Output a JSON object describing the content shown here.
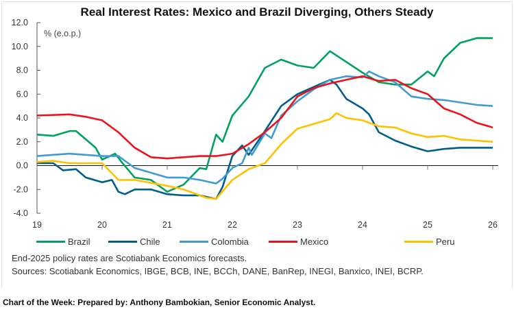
{
  "chart_data": {
    "type": "line",
    "title": "Real Interest Rates: Mexico and Brazil Diverging, Others Steady",
    "ylabel": "% (e.o.p.)",
    "xlabel": "",
    "xlim": [
      2019,
      2026
    ],
    "ylim": [
      -4.0,
      12.0
    ],
    "x_ticks": [
      "19",
      "20",
      "21",
      "22",
      "23",
      "24",
      "25",
      "26"
    ],
    "y_ticks": [
      "12.0",
      "10.0",
      "8.0",
      "6.0",
      "4.0",
      "2.0",
      "0.0",
      "-2.0",
      "-4.0"
    ],
    "grid": false,
    "legend": "bottom",
    "series": [
      {
        "name": "Brazil",
        "color": "#00A05E",
        "x": [
          2019,
          2019.25,
          2019.5,
          2019.6,
          2019.75,
          2019.9,
          2020,
          2020.2,
          2020.3,
          2020.5,
          2020.75,
          2021,
          2021.25,
          2021.5,
          2021.6,
          2021.75,
          2021.85,
          2022,
          2022.25,
          2022.5,
          2022.75,
          2023,
          2023.25,
          2023.5,
          2023.75,
          2024,
          2024.25,
          2024.5,
          2024.75,
          2025,
          2025.1,
          2025.25,
          2025.5,
          2025.75,
          2026
        ],
        "y": [
          2.6,
          2.5,
          2.9,
          2.9,
          2.2,
          1.5,
          0.5,
          1.0,
          0.3,
          -1.0,
          -1.2,
          -2.2,
          -1.6,
          -0.2,
          -0.3,
          2.6,
          2.0,
          4.2,
          5.8,
          8.2,
          8.9,
          8.4,
          8.2,
          9.6,
          8.7,
          7.8,
          7.0,
          6.8,
          6.8,
          7.9,
          7.5,
          9.0,
          10.3,
          10.7,
          10.7
        ]
      },
      {
        "name": "Chile",
        "color": "#005D88",
        "x": [
          2019,
          2019.25,
          2019.4,
          2019.6,
          2019.75,
          2020,
          2020.15,
          2020.25,
          2020.35,
          2020.5,
          2020.75,
          2021,
          2021.25,
          2021.5,
          2021.75,
          2021.85,
          2022,
          2022.15,
          2022.25,
          2022.5,
          2022.75,
          2023,
          2023.25,
          2023.5,
          2023.6,
          2023.75,
          2024,
          2024.1,
          2024.25,
          2024.5,
          2024.75,
          2025,
          2025.25,
          2025.5,
          2025.75,
          2026
        ],
        "y": [
          0.2,
          0.2,
          -0.4,
          -0.3,
          -1.0,
          -1.4,
          -1.2,
          -2.2,
          -2.4,
          -2.0,
          -2.0,
          -2.4,
          -2.5,
          -2.5,
          -2.8,
          -1.8,
          0.8,
          1.7,
          0.9,
          2.9,
          5.0,
          6.0,
          6.6,
          7.2,
          6.8,
          5.6,
          4.8,
          4.3,
          2.8,
          2.1,
          1.6,
          1.2,
          1.4,
          1.5,
          1.5,
          1.5
        ]
      },
      {
        "name": "Colombia",
        "color": "#3F9BD1",
        "x": [
          2019,
          2019.5,
          2020,
          2020.25,
          2020.5,
          2020.75,
          2021,
          2021.25,
          2021.5,
          2021.75,
          2021.85,
          2022,
          2022.15,
          2022.25,
          2022.3,
          2022.5,
          2022.6,
          2022.75,
          2023,
          2023.25,
          2023.5,
          2023.75,
          2024,
          2024.1,
          2024.25,
          2024.5,
          2024.75,
          2025,
          2025.25,
          2025.5,
          2025.75,
          2026
        ],
        "y": [
          0.8,
          1.0,
          0.8,
          0.8,
          -0.2,
          -0.6,
          -1.0,
          -1.0,
          -1.2,
          -1.5,
          -1.1,
          -0.2,
          0.2,
          1.5,
          0.9,
          2.7,
          2.3,
          4.2,
          5.4,
          6.4,
          7.2,
          7.5,
          7.4,
          7.9,
          7.5,
          7.0,
          5.8,
          5.6,
          5.5,
          5.3,
          5.1,
          5.0
        ]
      },
      {
        "name": "Mexico",
        "color": "#EC111A",
        "x": [
          2019,
          2019.5,
          2019.75,
          2020,
          2020.25,
          2020.5,
          2020.75,
          2021,
          2021.5,
          2021.75,
          2022,
          2022.25,
          2022.5,
          2022.75,
          2023,
          2023.25,
          2023.5,
          2023.75,
          2024,
          2024.25,
          2024.5,
          2024.75,
          2025,
          2025.25,
          2025.5,
          2025.75,
          2026
        ],
        "y": [
          4.2,
          4.3,
          4.1,
          3.8,
          2.8,
          1.5,
          0.7,
          0.6,
          0.8,
          0.8,
          1.0,
          1.8,
          2.8,
          4.0,
          5.8,
          6.5,
          6.9,
          7.2,
          7.5,
          7.1,
          7.2,
          6.5,
          6.0,
          4.8,
          4.3,
          3.6,
          3.2
        ]
      },
      {
        "name": "Peru",
        "color": "#FFC000",
        "x": [
          2019,
          2019.25,
          2019.5,
          2020,
          2020.25,
          2020.5,
          2021,
          2021.25,
          2021.5,
          2021.6,
          2021.75,
          2022,
          2022.25,
          2022.5,
          2022.75,
          2023,
          2023.25,
          2023.5,
          2023.6,
          2023.75,
          2024,
          2024.25,
          2024.5,
          2024.75,
          2025,
          2025.25,
          2025.5,
          2025.75,
          2026
        ],
        "y": [
          0.3,
          0.4,
          0.2,
          0.2,
          -1.2,
          -1.2,
          -1.7,
          -2.0,
          -2.5,
          -2.7,
          -2.8,
          -1.2,
          -0.3,
          0.2,
          1.8,
          3.1,
          3.5,
          3.9,
          4.4,
          4.0,
          3.8,
          3.3,
          3.2,
          2.7,
          2.4,
          2.5,
          2.2,
          2.1,
          2.0
        ]
      }
    ]
  },
  "notes": {
    "forecast": "End-2025 policy rates are Scotiabank Economics forecasts.",
    "sources": "Sources: Scotiabank Economics, IBGE, BCB, INE, BCCh, DANE, BanRep, INEGI, Banxico, INEI, BCRP."
  },
  "footer": "Chart of the Week:  Prepared by: Anthony Bambokian, Senior Economic Analyst."
}
